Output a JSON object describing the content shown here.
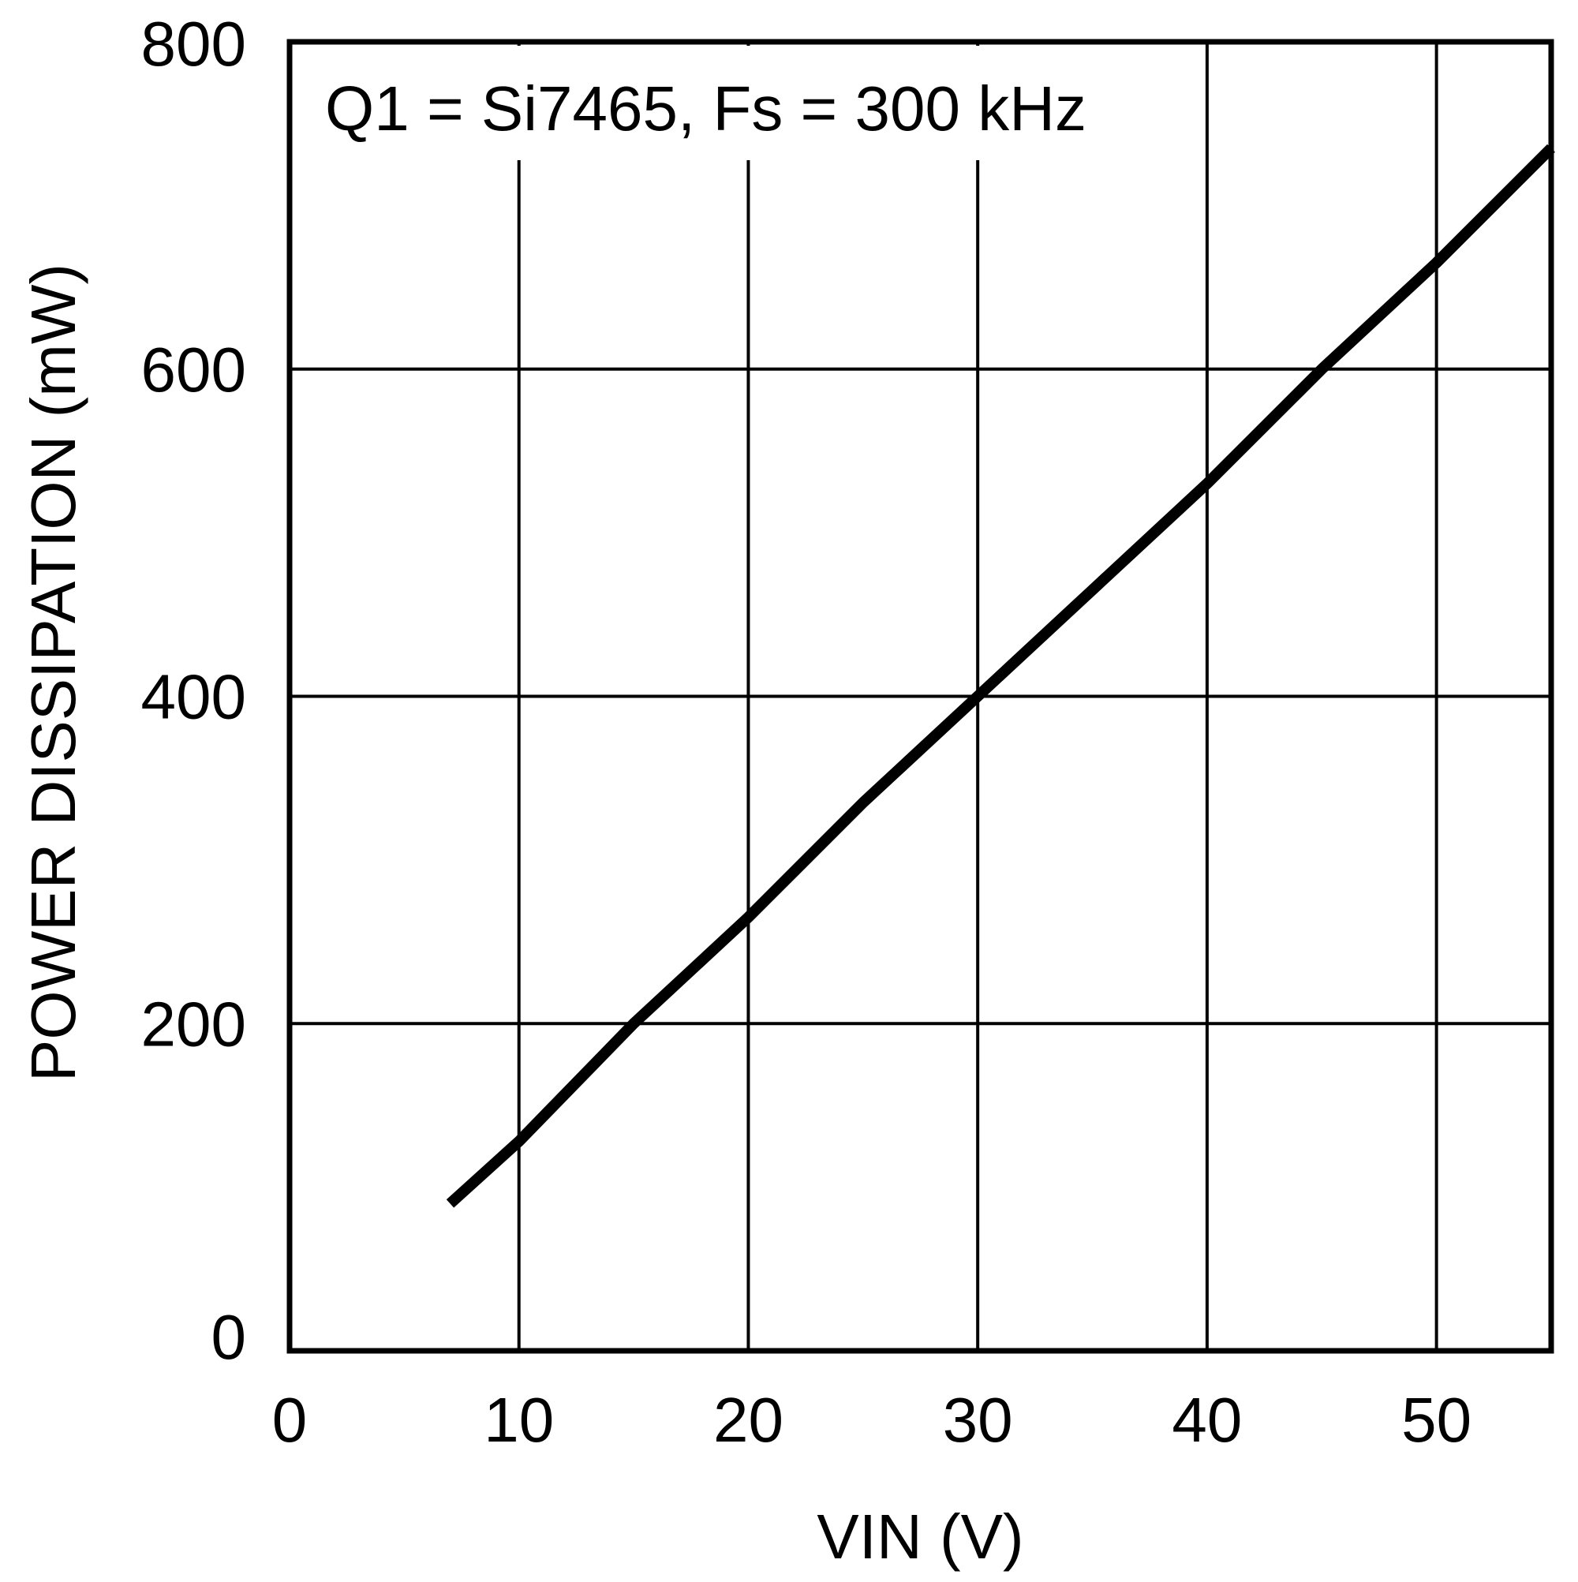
{
  "chart_data": {
    "type": "line",
    "title": "",
    "annotation": "Q1 = Si7465, Fs = 300 kHz",
    "xlabel": "VIN (V)",
    "ylabel": "POWER DISSIPATION (mW)",
    "xlim": [
      0,
      55
    ],
    "ylim": [
      0,
      800
    ],
    "xticks": [
      0,
      10,
      20,
      30,
      40,
      50
    ],
    "yticks": [
      0,
      200,
      400,
      600,
      800
    ],
    "grid": true,
    "series": [
      {
        "x": [
          7,
          10,
          15,
          20,
          25,
          30,
          35,
          40,
          45,
          50,
          55
        ],
        "y": [
          90,
          128,
          200,
          265,
          335,
          400,
          465,
          530,
          600,
          665,
          735
        ]
      }
    ],
    "colors": {
      "line": "#000000",
      "grid": "#000000",
      "background": "#ffffff"
    }
  }
}
